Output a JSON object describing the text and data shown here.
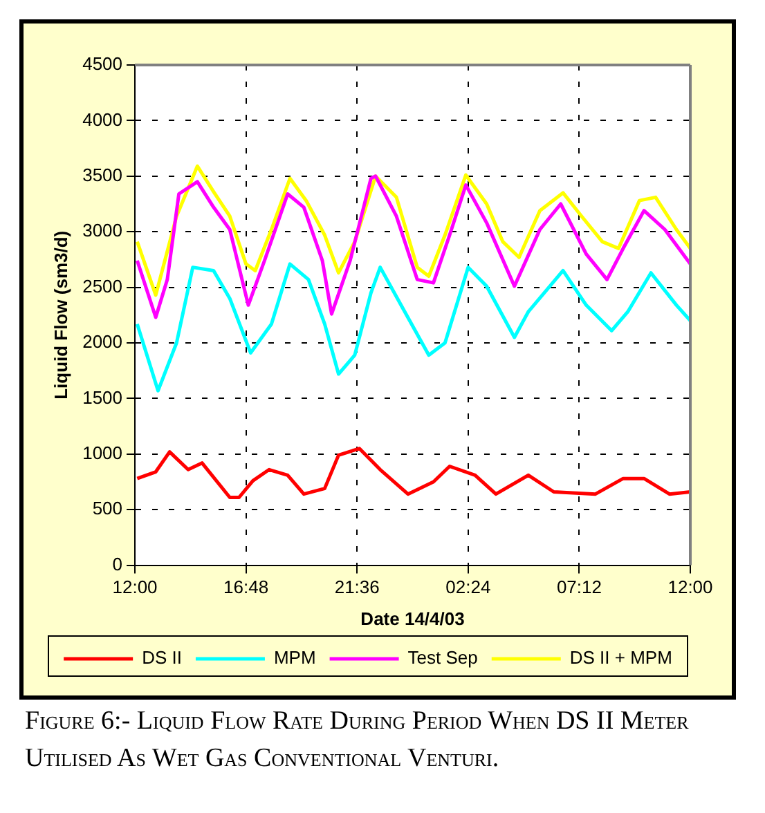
{
  "chart_data": {
    "type": "line",
    "xlabel": "Date 14/4/03",
    "ylabel": "Liquid Flow (sm3/d)",
    "xlim": [
      "--04-14T12:00",
      "--04-15T12:00"
    ],
    "xticks": [
      {
        "value": "--04-14T12:00",
        "label": "12:00"
      },
      {
        "value": "--04-14T16:48",
        "label": "16:48"
      },
      {
        "value": "--04-14T21:36",
        "label": "21:36"
      },
      {
        "value": "--04-15T02:24",
        "label": "02:24"
      },
      {
        "value": "--04-15T07:12",
        "label": "07:12"
      },
      {
        "value": "--04-15T12:00",
        "label": "12:00"
      }
    ],
    "ylim": [
      0,
      4500
    ],
    "yticks": [
      0,
      500,
      1000,
      1500,
      2000,
      2500,
      3000,
      3500,
      4000,
      4500
    ],
    "grid": true,
    "legend": "bottom",
    "marker": "none",
    "line_style": "solid",
    "series": [
      {
        "name": "DS II",
        "color": "#ff0000",
        "x": [
          "--04-14T12:06",
          "--04-14T12:54",
          "--04-14T13:30",
          "--04-14T14:18",
          "--04-14T14:54",
          "--04-14T16:06",
          "--04-14T16:30",
          "--04-14T17:06",
          "--04-14T17:48",
          "--04-14T18:36",
          "--04-14T19:18",
          "--04-14T20:12",
          "--04-14T20:48",
          "--04-14T21:42",
          "--04-14T22:36",
          "--04-14T23:48",
          "--04-15T00:54",
          "--04-15T01:36",
          "--04-15T02:42",
          "--04-15T03:36",
          "--04-15T05:00",
          "--04-15T06:06",
          "--04-15T07:54",
          "--04-15T09:06",
          "--04-15T10:00",
          "--04-15T11:06",
          "--04-15T12:00"
        ],
        "values": [
          780,
          840,
          1020,
          860,
          920,
          610,
          610,
          760,
          860,
          810,
          640,
          690,
          990,
          1050,
          860,
          640,
          750,
          890,
          810,
          640,
          810,
          660,
          640,
          780,
          780,
          640,
          660
        ]
      },
      {
        "name": "MPM",
        "color": "#00ffff",
        "x": [
          "--04-14T12:06",
          "--04-14T13:00",
          "--04-14T13:48",
          "--04-14T14:30",
          "--04-14T15:24",
          "--04-14T16:06",
          "--04-14T17:00",
          "--04-14T17:54",
          "--04-14T18:42",
          "--04-14T19:30",
          "--04-14T20:12",
          "--04-14T20:48",
          "--04-14T21:30",
          "--04-14T22:12",
          "--04-14T22:36",
          "--04-14T23:30",
          "--04-15T00:42",
          "--04-15T01:24",
          "--04-15T02:24",
          "--04-15T03:12",
          "--04-15T04:24",
          "--04-15T05:00",
          "--04-15T06:30",
          "--04-15T07:30",
          "--04-15T08:36",
          "--04-15T09:18",
          "--04-15T10:18",
          "--04-15T11:24",
          "--04-15T12:00"
        ],
        "values": [
          2170,
          1570,
          2000,
          2680,
          2650,
          2400,
          1910,
          2170,
          2710,
          2570,
          2170,
          1720,
          1890,
          2450,
          2680,
          2340,
          1890,
          2000,
          2680,
          2510,
          2050,
          2280,
          2650,
          2340,
          2110,
          2280,
          2630,
          2340,
          2200
        ]
      },
      {
        "name": "Test Sep",
        "color": "#ff00ff",
        "x": [
          "--04-14T12:06",
          "--04-14T12:54",
          "--04-14T13:24",
          "--04-14T13:54",
          "--04-14T14:42",
          "--04-14T15:24",
          "--04-14T16:06",
          "--04-14T16:54",
          "--04-14T17:36",
          "--04-14T18:36",
          "--04-14T19:18",
          "--04-14T20:06",
          "--04-14T20:30",
          "--04-14T21:18",
          "--04-14T22:12",
          "--04-14T22:24",
          "--04-14T23:18",
          "--04-15T00:12",
          "--04-15T00:54",
          "--04-15T01:36",
          "--04-15T02:18",
          "--04-15T03:12",
          "--04-15T04:24",
          "--04-15T05:30",
          "--04-15T06:24",
          "--04-15T07:30",
          "--04-15T08:24",
          "--04-15T09:06",
          "--04-15T10:00",
          "--04-15T10:54",
          "--04-15T12:00"
        ],
        "values": [
          2740,
          2230,
          2570,
          3340,
          3450,
          3220,
          3020,
          2340,
          2740,
          3340,
          3220,
          2740,
          2260,
          2740,
          3480,
          3500,
          3140,
          2570,
          2540,
          2970,
          3420,
          3080,
          2510,
          3020,
          3250,
          2800,
          2570,
          2850,
          3190,
          3020,
          2710
        ]
      },
      {
        "name": "DS II + MPM",
        "color": "#ffff00",
        "x": [
          "--04-14T12:06",
          "--04-14T12:54",
          "--04-14T13:48",
          "--04-14T14:42",
          "--04-14T15:24",
          "--04-14T16:06",
          "--04-14T16:48",
          "--04-14T17:12",
          "--04-14T17:54",
          "--04-14T18:42",
          "--04-14T19:24",
          "--04-14T20:12",
          "--04-14T20:48",
          "--04-14T21:30",
          "--04-14T22:24",
          "--04-14T23:18",
          "--04-15T00:12",
          "--04-15T00:42",
          "--04-15T01:24",
          "--04-15T02:18",
          "--04-15T03:12",
          "--04-15T03:54",
          "--04-15T04:36",
          "--04-15T05:30",
          "--04-15T06:30",
          "--04-15T07:18",
          "--04-15T08:12",
          "--04-15T08:54",
          "--04-15T09:48",
          "--04-15T10:30",
          "--04-15T11:24",
          "--04-15T12:00"
        ],
        "values": [
          2910,
          2430,
          3140,
          3590,
          3360,
          3140,
          2710,
          2650,
          3020,
          3480,
          3280,
          2970,
          2630,
          2910,
          3500,
          3310,
          2680,
          2600,
          2970,
          3510,
          3250,
          2910,
          2770,
          3190,
          3350,
          3140,
          2910,
          2850,
          3280,
          3310,
          3020,
          2850
        ]
      }
    ],
    "annotations": [
      "Figure 6:- Liquid Flow Rate During Period When DS II Meter Utilised As Wet Gas Conventional Venturi."
    ]
  }
}
